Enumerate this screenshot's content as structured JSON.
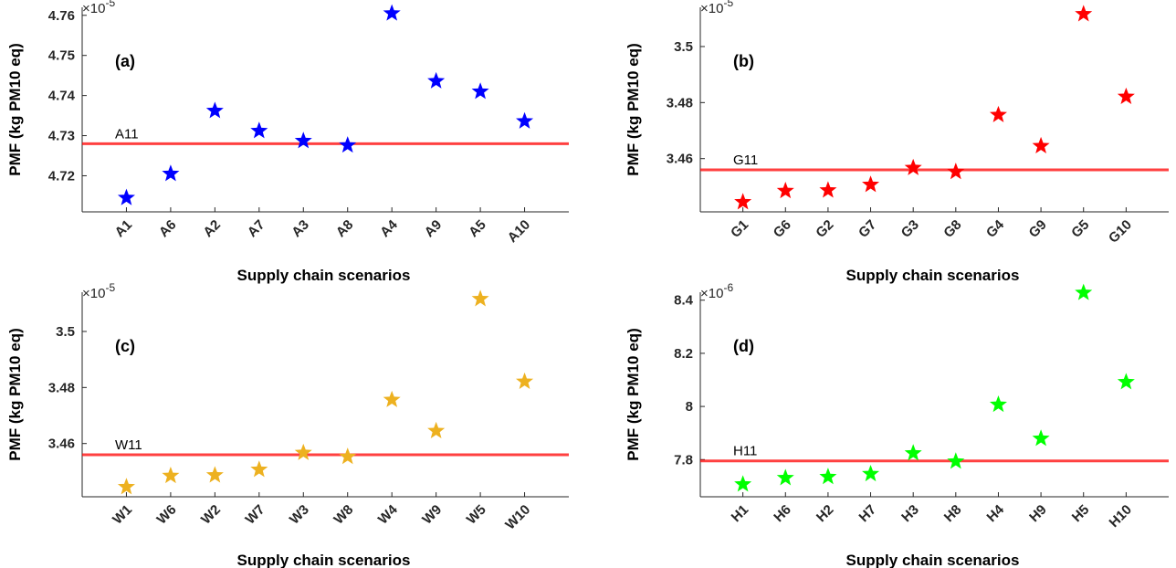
{
  "chart_data": [
    {
      "type": "scatter",
      "panel_label": "(a)",
      "ylabel": "PMF (kg PM10 eq)",
      "xlabel": "Supply chain scenarios",
      "multiplier": "×10",
      "exponent": "-5",
      "categories": [
        "A1",
        "A6",
        "A2",
        "A7",
        "A3",
        "A8",
        "A4",
        "A9",
        "A5",
        "A10"
      ],
      "values": [
        4.7145,
        4.7205,
        4.7362,
        4.7312,
        4.7287,
        4.7276,
        4.7605,
        4.7436,
        4.741,
        4.7336
      ],
      "ylim": [
        4.711,
        4.762
      ],
      "yticks": [
        4.72,
        4.73,
        4.74,
        4.75,
        4.76
      ],
      "ytick_labels": [
        "4.72",
        "4.73",
        "4.74",
        "4.75",
        "4.76"
      ],
      "reference_line": {
        "label": "A11",
        "value": 4.728
      },
      "color": "#0000ff"
    },
    {
      "type": "scatter",
      "panel_label": "(b)",
      "ylabel": "PMF (kg PM10 eq)",
      "xlabel": "Supply chain scenarios",
      "multiplier": "×10",
      "exponent": "-5",
      "categories": [
        "G1",
        "G6",
        "G2",
        "G7",
        "G3",
        "G8",
        "G4",
        "G9",
        "G5",
        "G10"
      ],
      "values": [
        3.4445,
        3.4485,
        3.4487,
        3.4507,
        3.4567,
        3.4553,
        3.4756,
        3.4645,
        3.5116,
        3.4821
      ],
      "ylim": [
        3.441,
        3.514
      ],
      "yticks": [
        3.46,
        3.48,
        3.5
      ],
      "ytick_labels": [
        "3.46",
        "3.48",
        "3.5"
      ],
      "reference_line": {
        "label": "G11",
        "value": 3.456
      },
      "color": "#ff0000"
    },
    {
      "type": "scatter",
      "panel_label": "(c)",
      "ylabel": "PMF (kg PM10 eq)",
      "xlabel": "Supply chain scenarios",
      "multiplier": "×10",
      "exponent": "-5",
      "categories": [
        "W1",
        "W6",
        "W2",
        "W7",
        "W3",
        "W8",
        "W4",
        "W9",
        "W5",
        "W10"
      ],
      "values": [
        3.4445,
        3.4485,
        3.4487,
        3.4507,
        3.4567,
        3.4553,
        3.4756,
        3.4645,
        3.5116,
        3.4821
      ],
      "ylim": [
        3.441,
        3.514
      ],
      "yticks": [
        3.46,
        3.48,
        3.5
      ],
      "ytick_labels": [
        "3.46",
        "3.48",
        "3.5"
      ],
      "reference_line": {
        "label": "W11",
        "value": 3.456
      },
      "color": "#edb120"
    },
    {
      "type": "scatter",
      "panel_label": "(d)",
      "ylabel": "PMF (kg PM10 eq)",
      "xlabel": "Supply chain scenarios",
      "multiplier": "×10",
      "exponent": "-6",
      "categories": [
        "H1",
        "H6",
        "H2",
        "H7",
        "H3",
        "H8",
        "H4",
        "H9",
        "H5",
        "H10"
      ],
      "values": [
        7.707,
        7.731,
        7.735,
        7.746,
        7.824,
        7.793,
        8.007,
        7.879,
        8.428,
        8.092
      ],
      "ylim": [
        7.66,
        8.43
      ],
      "yticks": [
        7.8,
        8.0,
        8.2,
        8.4
      ],
      "ytick_labels": [
        "7.8",
        "8",
        "8.2",
        "8.4"
      ],
      "reference_line": {
        "label": "H11",
        "value": 7.795
      },
      "color": "#00ff00"
    }
  ]
}
